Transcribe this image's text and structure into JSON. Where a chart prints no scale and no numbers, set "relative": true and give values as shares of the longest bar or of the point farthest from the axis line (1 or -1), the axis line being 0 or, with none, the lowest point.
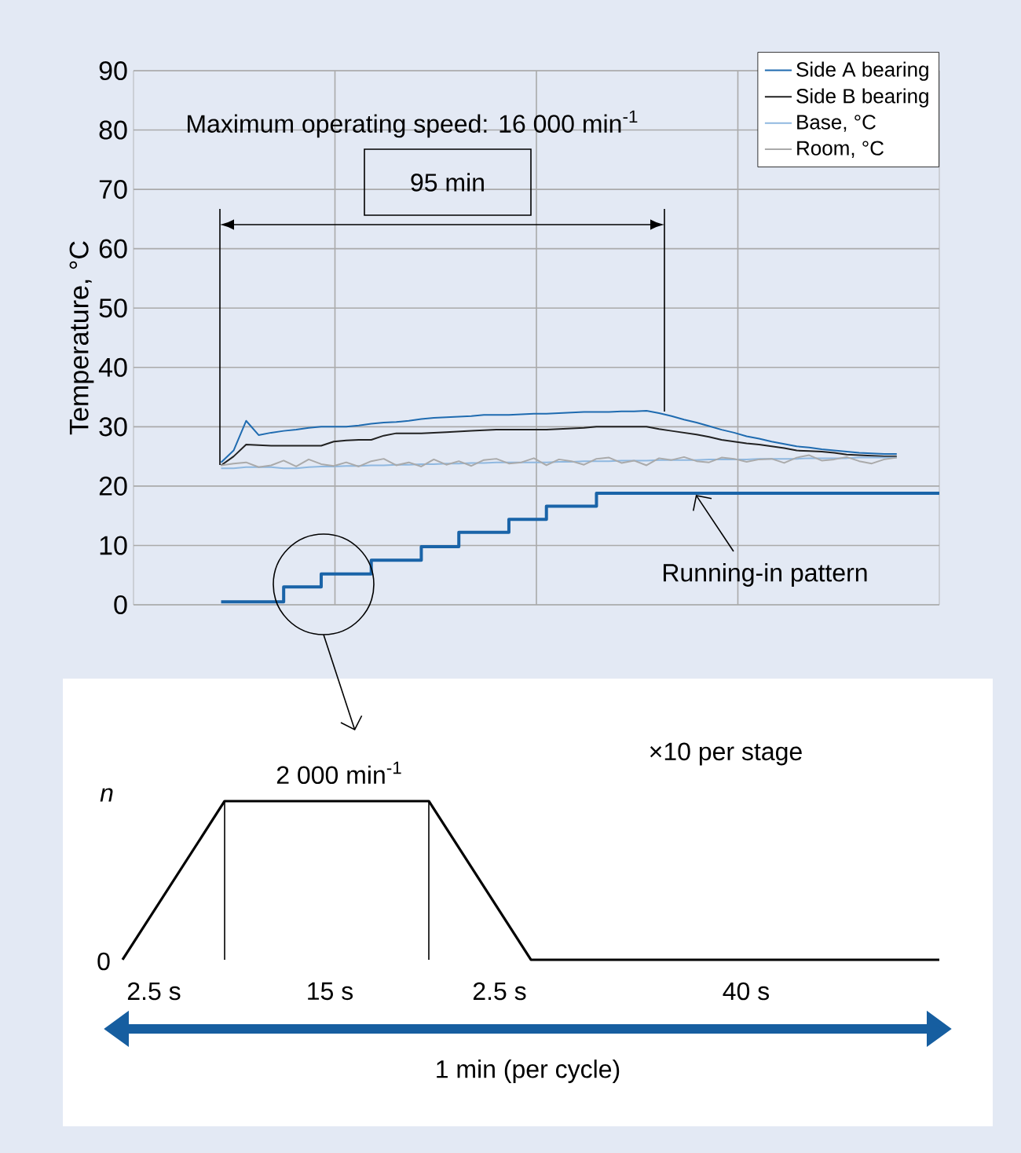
{
  "chart_data": [
    {
      "type": "line",
      "ylabel": "Temperature, °C",
      "ylim": [
        0,
        90
      ],
      "yticks": [
        0,
        10,
        20,
        30,
        40,
        50,
        60,
        70,
        80,
        90
      ],
      "grid": true,
      "legend": "top right",
      "tick_labels": "y",
      "categories": [
        null,
        null,
        null,
        null,
        null,
        null,
        null,
        null,
        null,
        null,
        null,
        null,
        null,
        null,
        null,
        null,
        null,
        null,
        null,
        null,
        null,
        null,
        null,
        null,
        null,
        null,
        null,
        null,
        null,
        null,
        null,
        null,
        null,
        null,
        null,
        null,
        null,
        null,
        null,
        null,
        null,
        null,
        null,
        null,
        null,
        null,
        null,
        null,
        null,
        null,
        null,
        null,
        null,
        null,
        null
      ],
      "series": [
        {
          "name": "Side A bearing",
          "color": "#1f6bb0",
          "values": [
            24,
            26,
            31,
            28.6,
            29,
            29.3,
            29.5,
            29.8,
            30,
            30,
            30,
            30.2,
            30.5,
            30.7,
            30.8,
            31,
            31.3,
            31.5,
            31.6,
            31.7,
            31.8,
            32,
            32,
            32,
            32.1,
            32.2,
            32.2,
            32.3,
            32.4,
            32.5,
            32.5,
            32.5,
            32.6,
            32.6,
            32.7,
            32.3,
            31.8,
            31.2,
            30.7,
            30.1,
            29.5,
            29,
            28.4,
            28,
            27.5,
            27.1,
            26.7,
            26.5,
            26.2,
            26,
            25.8,
            25.6,
            25.5,
            25.4,
            25.4
          ]
        },
        {
          "name": "Side B bearing",
          "color": "#222222",
          "values": [
            23.5,
            25,
            27,
            26.9,
            26.8,
            26.8,
            26.8,
            26.8,
            26.8,
            27.5,
            27.7,
            27.8,
            27.8,
            28.5,
            28.9,
            28.9,
            28.9,
            29,
            29.1,
            29.2,
            29.3,
            29.4,
            29.5,
            29.5,
            29.5,
            29.5,
            29.5,
            29.6,
            29.7,
            29.8,
            30,
            30,
            30,
            30,
            30,
            29.6,
            29.3,
            29,
            28.7,
            28.3,
            27.8,
            27.5,
            27.2,
            27,
            26.7,
            26.4,
            26,
            25.9,
            25.8,
            25.6,
            25.3,
            25.2,
            25.1,
            25,
            25
          ]
        },
        {
          "name": "Base, °C",
          "color": "#8fb8e0",
          "values": [
            23,
            23,
            23.2,
            23.2,
            23.2,
            23,
            23,
            23.2,
            23.3,
            23.3,
            23.4,
            23.4,
            23.5,
            23.5,
            23.6,
            23.6,
            23.7,
            23.7,
            23.8,
            23.8,
            23.9,
            23.9,
            24,
            24,
            24,
            24,
            24,
            24.1,
            24.1,
            24.2,
            24.2,
            24.2,
            24.3,
            24.3,
            24.3,
            24.4,
            24.4,
            24.4,
            24.4,
            24.5,
            24.5,
            24.5,
            24.5,
            24.6,
            24.6,
            24.6,
            24.6,
            24.7,
            24.7,
            24.7,
            24.7,
            24.8,
            24.8,
            24.8,
            24.8
          ]
        },
        {
          "name": "Room, °C",
          "color": "#aaaaaa",
          "values": [
            23.5,
            23.8,
            24,
            23.2,
            23.5,
            24.3,
            23.3,
            24.5,
            23.7,
            23.4,
            24,
            23.3,
            24.2,
            24.6,
            23.5,
            24,
            23.3,
            24.5,
            23.6,
            24.2,
            23.4,
            24.4,
            24.6,
            23.8,
            24,
            24.7,
            23.5,
            24.5,
            24.2,
            23.6,
            24.6,
            24.8,
            23.9,
            24.3,
            23.5,
            24.7,
            24.4,
            24.9,
            24.2,
            24,
            24.8,
            24.6,
            24.1,
            24.5,
            24.6,
            23.9,
            24.8,
            25.2,
            24.3,
            24.5,
            24.9,
            24.2,
            23.8,
            24.5,
            24.8
          ]
        },
        {
          "type": "step",
          "color": "#1a64a8",
          "values": [
            0.5,
            0.5,
            0.5,
            0.5,
            0.5,
            3,
            3,
            3,
            5.2,
            5.2,
            5.2,
            5.2,
            7.5,
            7.5,
            7.5,
            7.5,
            9.8,
            9.8,
            9.8,
            12.2,
            12.2,
            12.2,
            12.2,
            14.4,
            14.4,
            14.4,
            16.6,
            16.6,
            16.6,
            16.6,
            18.8,
            18.8,
            18.8,
            18.8,
            18.8,
            18.8,
            18.8,
            18.8,
            18.8,
            18.8,
            18.8,
            18.8,
            18.8,
            18.8,
            18.8,
            18.8,
            18.8,
            18.8,
            18.8,
            18.8,
            18.8,
            18.8,
            18.8,
            18.8,
            18.8
          ]
        }
      ],
      "annotations": [
        "Maximum operating speed: 16 000 min$^{-1}$",
        "95 min",
        "Running-in pattern"
      ]
    },
    {
      "type": "line",
      "relative": true,
      "tick_labels": false,
      "categories": [
        null,
        null,
        null,
        null,
        null,
        null,
        null,
        null,
        null
      ],
      "series": [
        {
          "color": "#000000",
          "values": [
            0,
            1,
            1,
            1,
            0,
            0,
            0,
            0,
            0
          ]
        }
      ],
      "annotations": [
        "2 000 min$^{-1}$",
        "×10 per stage",
        "2.5 s",
        "15 s",
        "2.5 s",
        "40 s",
        "1 min (per cycle)",
        "0",
        "n"
      ]
    }
  ]
}
